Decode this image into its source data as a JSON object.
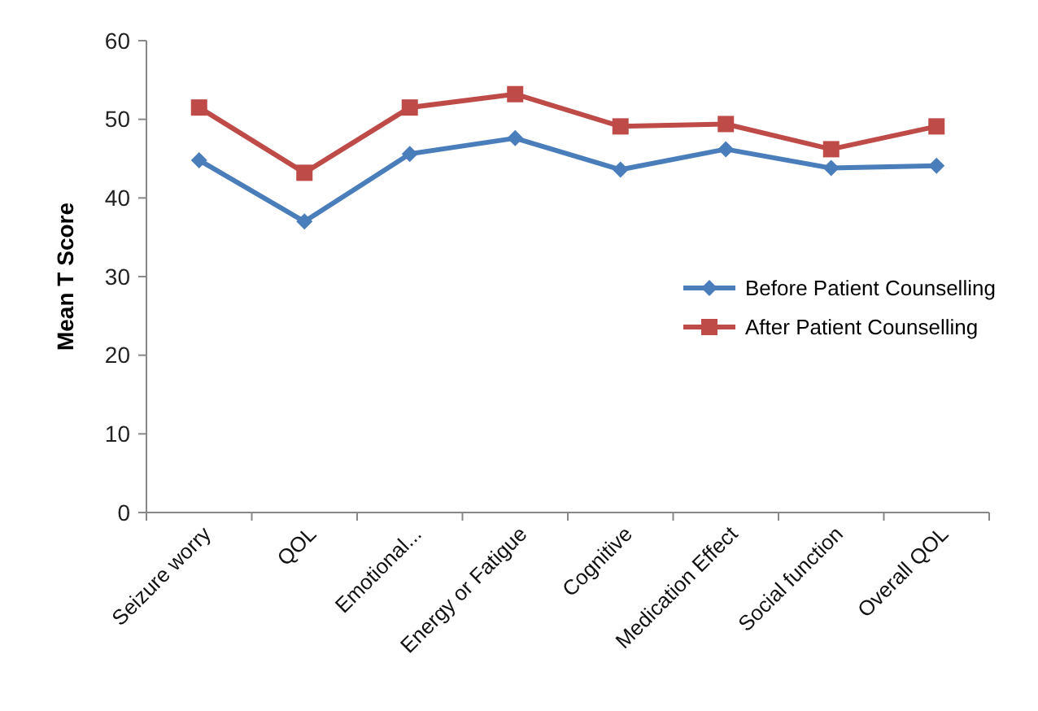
{
  "chart_data": {
    "type": "line",
    "ylabel": "Mean T Score",
    "categories": [
      "Seizure worry",
      "QOL",
      "Emotional...",
      "Energy or Fatigue",
      "Cognitive",
      "Medication Effect",
      "Social function",
      "Overall QOL"
    ],
    "series": [
      {
        "name": "Before Patient Counselling",
        "color": "#4a7ebb",
        "marker": "diamond",
        "values": [
          44.8,
          37.0,
          45.6,
          47.6,
          43.6,
          46.2,
          43.8,
          44.1
        ]
      },
      {
        "name": "After Patient Counselling",
        "color": "#be4b48",
        "marker": "square",
        "values": [
          51.5,
          43.2,
          51.5,
          53.2,
          49.1,
          49.4,
          46.2,
          49.1
        ]
      }
    ],
    "ylim": [
      0,
      60
    ],
    "yticks": [
      0,
      10,
      20,
      30,
      40,
      50,
      60
    ],
    "grid": false,
    "legend": "right"
  }
}
